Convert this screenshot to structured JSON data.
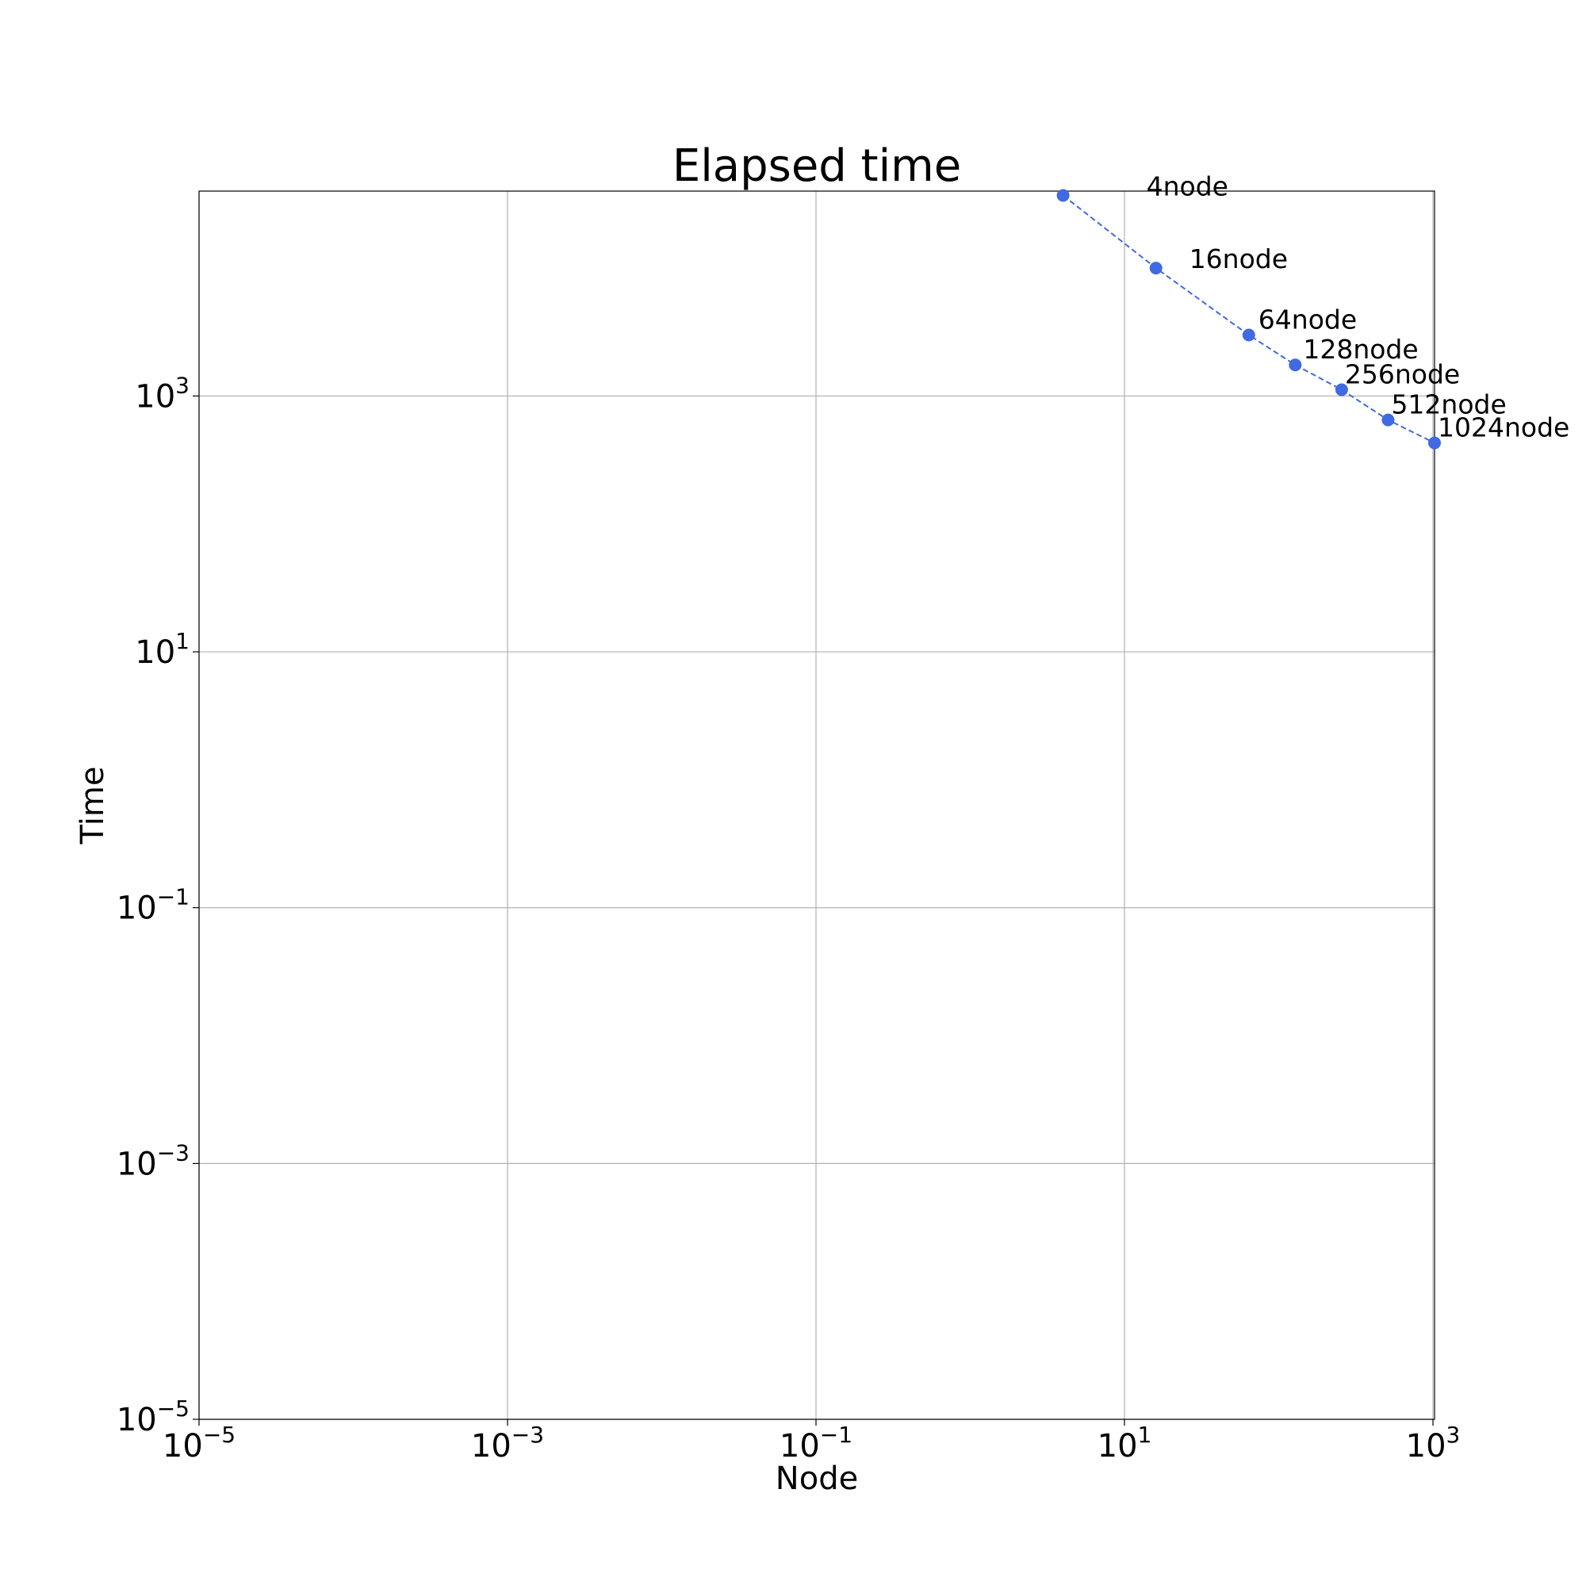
{
  "chart_data": {
    "type": "line",
    "title": "Elapsed time",
    "xlabel": "Node",
    "ylabel": "Time",
    "xscale": "log",
    "yscale": "log",
    "xlim": [
      1e-05,
      1024
    ],
    "ylim": [
      1e-05,
      40000
    ],
    "grid": true,
    "xticks": [
      {
        "value": 1e-05,
        "base": "10",
        "exp": "−5"
      },
      {
        "value": 0.001,
        "base": "10",
        "exp": "−3"
      },
      {
        "value": 0.1,
        "base": "10",
        "exp": "−1"
      },
      {
        "value": 10,
        "base": "10",
        "exp": "1"
      },
      {
        "value": 1000,
        "base": "10",
        "exp": "3"
      }
    ],
    "yticks": [
      {
        "value": 1e-05,
        "base": "10",
        "exp": "−5"
      },
      {
        "value": 0.001,
        "base": "10",
        "exp": "−3"
      },
      {
        "value": 0.1,
        "base": "10",
        "exp": "−1"
      },
      {
        "value": 10,
        "base": "10",
        "exp": "1"
      },
      {
        "value": 1000,
        "base": "10",
        "exp": "3"
      }
    ],
    "series": [
      {
        "color": "#4169e1",
        "line_style": "dashed",
        "marker": "circle",
        "points": [
          {
            "x": 4,
            "y": 37000,
            "label": "4node"
          },
          {
            "x": 16,
            "y": 10000,
            "label": "16node"
          },
          {
            "x": 64,
            "y": 3000,
            "label": "64node"
          },
          {
            "x": 128,
            "y": 1750,
            "label": "128node"
          },
          {
            "x": 256,
            "y": 1120,
            "label": "256node"
          },
          {
            "x": 512,
            "y": 650,
            "label": "512node"
          },
          {
            "x": 1024,
            "y": 430,
            "label": "1024node"
          }
        ]
      }
    ]
  }
}
